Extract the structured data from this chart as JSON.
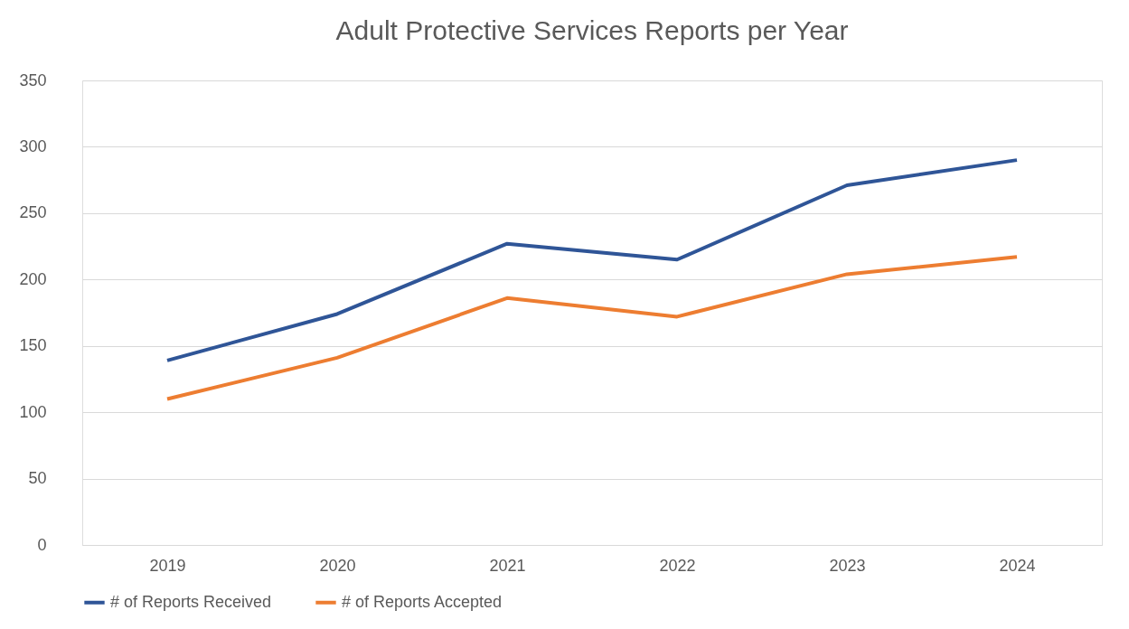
{
  "chart_data": {
    "type": "line",
    "title": "Adult Protective Services Reports per Year",
    "categories": [
      "2019",
      "2020",
      "2021",
      "2022",
      "2023",
      "2024"
    ],
    "series": [
      {
        "name": "# of Reports Received",
        "color": "#2f5597",
        "values": [
          139,
          174,
          227,
          215,
          271,
          290
        ]
      },
      {
        "name": "# of Reports Accepted",
        "color": "#ed7d31",
        "values": [
          110,
          141,
          186,
          172,
          204,
          217
        ]
      }
    ],
    "ylim": [
      0,
      350
    ],
    "yticks": [
      0,
      50,
      100,
      150,
      200,
      250,
      300,
      350
    ],
    "grid": "y",
    "legend": "bottom",
    "marker": "none",
    "line_style": "solid"
  }
}
